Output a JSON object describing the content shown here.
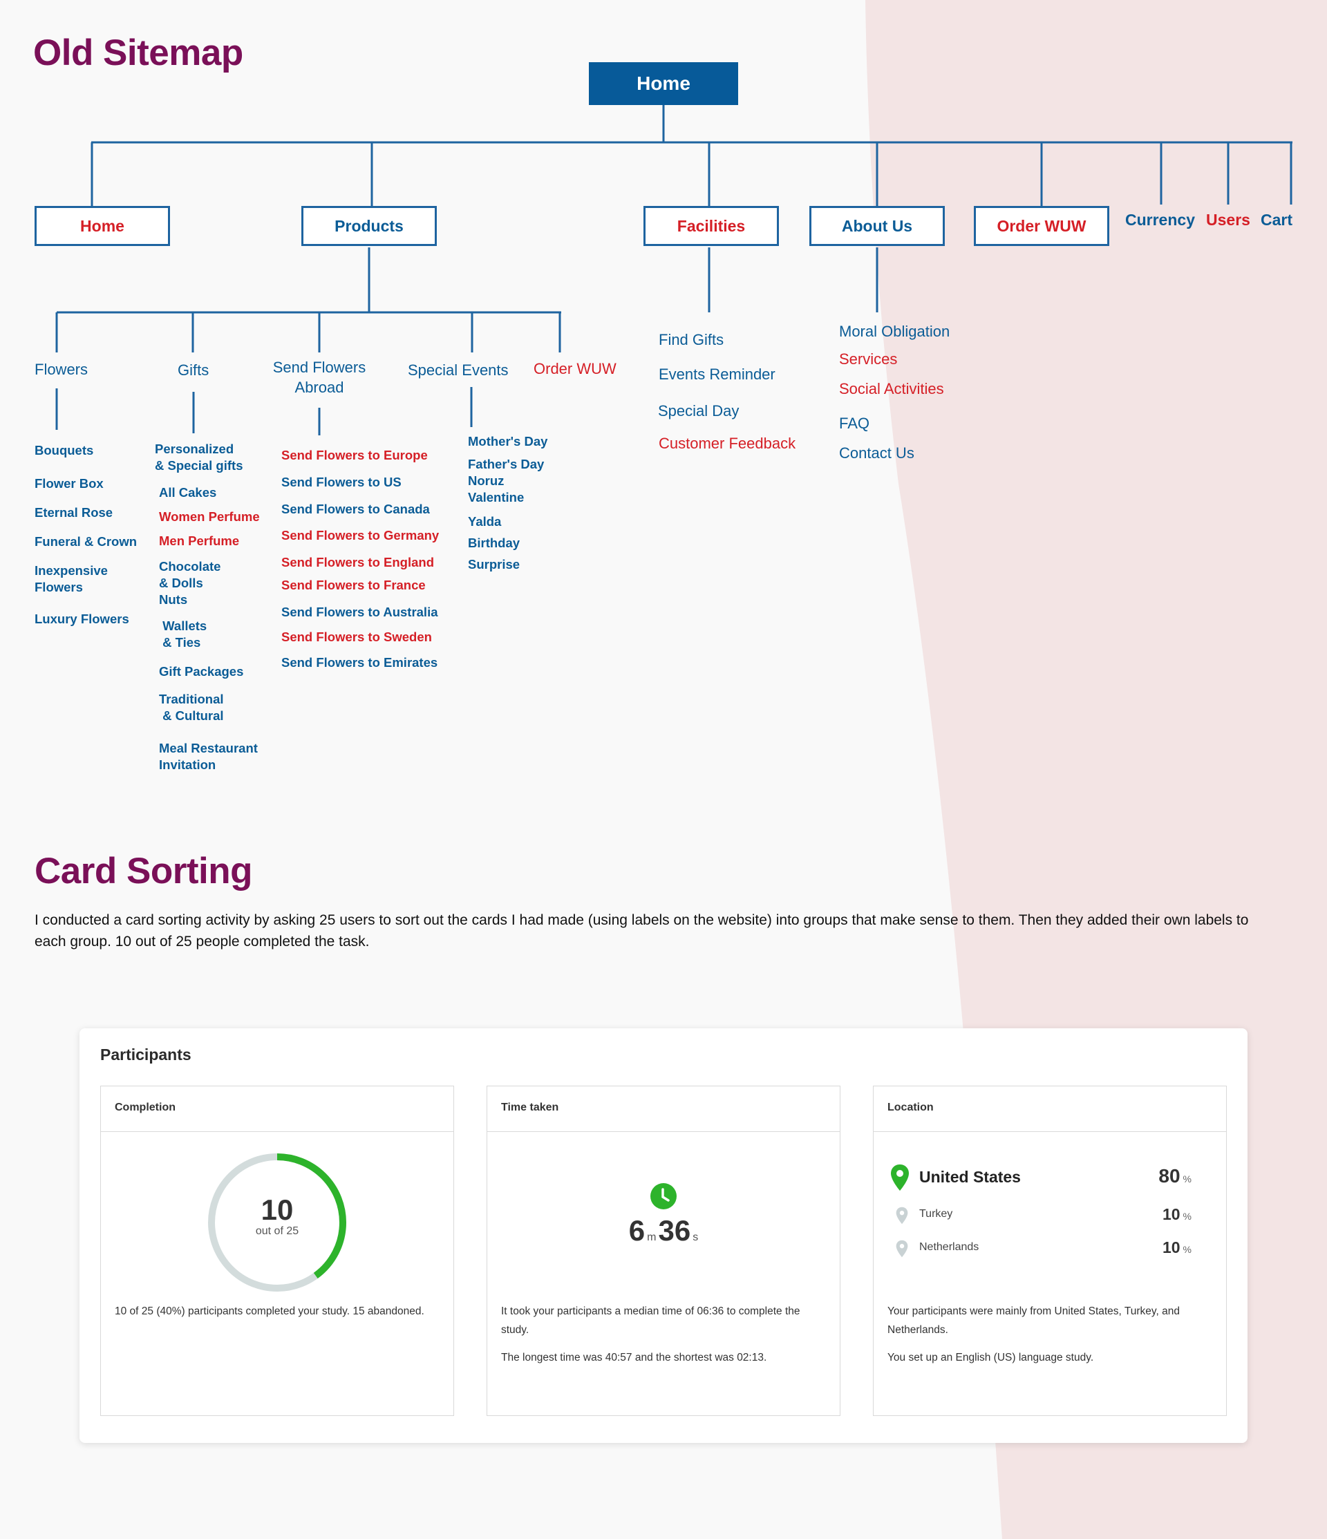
{
  "colors": {
    "title": "#7a1058",
    "blue": "#0b5c96",
    "red": "#d51f26",
    "pink_bg": "#f3e4e4",
    "green": "#2db32b"
  },
  "sitemap": {
    "title": "Old Sitemap",
    "root": "Home",
    "level1": [
      {
        "label": "Home",
        "color": "red"
      },
      {
        "label": "Products",
        "color": "blue"
      },
      {
        "label": "Facilities",
        "color": "red"
      },
      {
        "label": "About Us",
        "color": "blue"
      },
      {
        "label": "Order WUW",
        "color": "red"
      }
    ],
    "top_links": [
      {
        "label": "Currency",
        "color": "blue"
      },
      {
        "label": "Users",
        "color": "red"
      },
      {
        "label": "Cart",
        "color": "blue"
      }
    ],
    "products_children": [
      {
        "label": "Flowers",
        "color": "blue"
      },
      {
        "label": "Gifts",
        "color": "blue"
      },
      {
        "label": "Send Flowers\nAbroad",
        "color": "blue"
      },
      {
        "label": "Special Events",
        "color": "blue"
      },
      {
        "label": "Order WUW",
        "color": "red"
      }
    ],
    "flowers_items": [
      {
        "label": "Bouquets",
        "color": "blue"
      },
      {
        "label": "Flower Box",
        "color": "blue"
      },
      {
        "label": "Eternal Rose",
        "color": "blue"
      },
      {
        "label": "Funeral & Crown",
        "color": "blue"
      },
      {
        "label": "Inexpensive\nFlowers",
        "color": "blue"
      },
      {
        "label": "Luxury Flowers",
        "color": "blue"
      }
    ],
    "gifts_items": [
      {
        "label": "Personalized\n& Special gifts",
        "color": "blue"
      },
      {
        "label": "All Cakes",
        "color": "blue"
      },
      {
        "label": "Women Perfume",
        "color": "red"
      },
      {
        "label": "Men Perfume",
        "color": "red"
      },
      {
        "label": "Chocolate\n& Dolls\nNuts",
        "color": "blue"
      },
      {
        "label": " Wallets\n & Ties",
        "color": "blue"
      },
      {
        "label": "Gift Packages",
        "color": "blue"
      },
      {
        "label": "Traditional\n & Cultural",
        "color": "blue"
      },
      {
        "label": "Meal Restaurant\nInvitation",
        "color": "blue"
      }
    ],
    "abroad_items": [
      {
        "label": "Send Flowers to Europe",
        "color": "red"
      },
      {
        "label": "Send Flowers to US",
        "color": "blue"
      },
      {
        "label": "Send Flowers to Canada",
        "color": "blue"
      },
      {
        "label": "Send Flowers to Germany",
        "color": "red"
      },
      {
        "label": "Send Flowers to England",
        "color": "red"
      },
      {
        "label": "Send Flowers to France",
        "color": "red"
      },
      {
        "label": "Send Flowers to Australia",
        "color": "blue"
      },
      {
        "label": "Send Flowers to Sweden",
        "color": "red"
      },
      {
        "label": "Send Flowers to Emirates",
        "color": "blue"
      }
    ],
    "events_items": [
      {
        "label": "Mother's Day",
        "color": "blue"
      },
      {
        "label": "Father's Day\nNoruz\nValentine",
        "color": "blue"
      },
      {
        "label": "Yalda",
        "color": "blue"
      },
      {
        "label": "Birthday",
        "color": "blue"
      },
      {
        "label": "Surprise",
        "color": "blue"
      }
    ],
    "facilities_items": [
      {
        "label": "Find Gifts",
        "color": "blue"
      },
      {
        "label": "Events Reminder",
        "color": "blue"
      },
      {
        "label": "Special Day",
        "color": "blue"
      },
      {
        "label": "Customer Feedback",
        "color": "red"
      }
    ],
    "about_items": [
      {
        "label": "Moral Obligation",
        "color": "blue"
      },
      {
        "label": "Services",
        "color": "red"
      },
      {
        "label": "Social Activities",
        "color": "red"
      },
      {
        "label": "FAQ",
        "color": "blue"
      },
      {
        "label": "Contact Us",
        "color": "blue"
      }
    ]
  },
  "card_sorting": {
    "title": "Card Sorting",
    "description": "I conducted a card sorting activity by asking 25 users to sort out the cards I had made (using labels on the website) into groups that make sense to them. Then they added their own labels to each group. 10 out of 25 people completed the task.",
    "participants": {
      "title": "Participants",
      "completion": {
        "heading": "Completion",
        "value": "10",
        "total_label": "out of 25",
        "fraction": 0.4,
        "text": "10 of 25 (40%) participants completed your study. 15 abandoned."
      },
      "time": {
        "heading": "Time taken",
        "minutes": "6",
        "m_unit": "m",
        "seconds": "36",
        "s_unit": "s",
        "text1": "It took your participants a median time of 06:36 to complete the study.",
        "text2": "The longest time was 40:57 and the shortest was 02:13."
      },
      "location": {
        "heading": "Location",
        "rows": [
          {
            "country": "United States",
            "percent": "80",
            "unit": "%"
          },
          {
            "country": "Turkey",
            "percent": "10",
            "unit": "%"
          },
          {
            "country": "Netherlands",
            "percent": "10",
            "unit": "%"
          }
        ],
        "text1": "Your participants were mainly from United States, Turkey, and Netherlands.",
        "text2": "You set up an English (US) language study."
      }
    }
  }
}
